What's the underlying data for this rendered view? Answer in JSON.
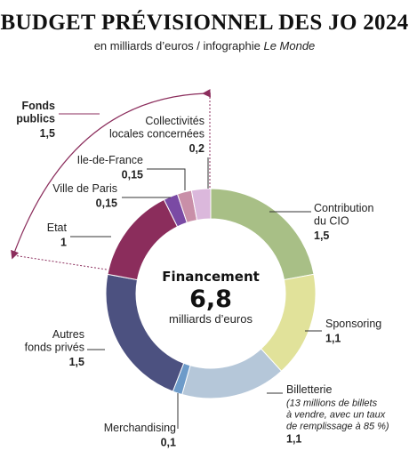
{
  "chart_data": {
    "type": "pie",
    "variant": "donut",
    "title": "BUDGET PRÉVISIONNEL DES JO 2024",
    "subtitle": "en milliards d’euros / infographie",
    "source": "Le Monde",
    "center": {
      "line1": "Financement",
      "value": "6,8",
      "line2": "milliards d’euros"
    },
    "slices": [
      {
        "name_lines": [
          "Contribution",
          "du CIO"
        ],
        "label": "1,5",
        "value": 1.5,
        "color": "#a8bf86"
      },
      {
        "name_lines": [
          "Sponsoring"
        ],
        "label": "1,1",
        "value": 1.1,
        "color": "#e1e29a"
      },
      {
        "name_lines": [
          "Billetterie"
        ],
        "note_lines": [
          "(13 millions de billets",
          "à vendre, avec un taux",
          "de remplissage à 85 %)"
        ],
        "label": "1,1",
        "value": 1.1,
        "color": "#b5c7d9"
      },
      {
        "name_lines": [
          "Merchandising"
        ],
        "label": "0,1",
        "value": 0.1,
        "color": "#6d9bc9"
      },
      {
        "name_lines": [
          "Autres",
          "fonds privés"
        ],
        "label": "1,5",
        "value": 1.5,
        "color": "#4c5180"
      },
      {
        "name_lines": [
          "Etat"
        ],
        "label": "1",
        "value": 1.0,
        "color": "#8b2d5c"
      },
      {
        "name_lines": [
          "Ville de Paris"
        ],
        "label": "0,15",
        "value": 0.15,
        "color": "#7a4aa4"
      },
      {
        "name_lines": [
          "Ile-de-France"
        ],
        "label": "0,15",
        "value": 0.15,
        "color": "#c98fa8"
      },
      {
        "name_lines": [
          "Collectivités",
          "locales concernées"
        ],
        "label": "0,2",
        "value": 0.2,
        "color": "#dbb8dc"
      }
    ],
    "group": {
      "name_lines": [
        "Fonds",
        "publics"
      ],
      "label": "1,5"
    }
  }
}
